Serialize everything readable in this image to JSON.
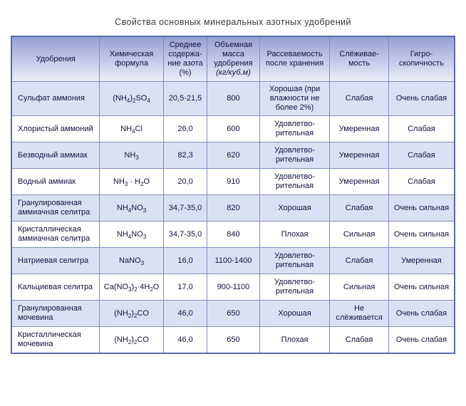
{
  "title": "Свойства основных минеральных азотных удобрений",
  "colors": {
    "header_gradient_top": "#96a0d3",
    "header_gradient_bottom": "#eceef9",
    "row_alt_background": "#dbe1f4",
    "row_background": "#ffffff",
    "border_inner": "#7f8dc5",
    "border_outer": "#5a69ae",
    "text": "#10103f",
    "title_text": "#3a3a3a"
  },
  "chart_data": {
    "type": "table",
    "title": "Свойства основных минеральных азотных удобрений",
    "headers": [
      {
        "label": "Удобрения"
      },
      {
        "label": "Химическая формула"
      },
      {
        "label": "Среднее содержа-ние азота (%)"
      },
      {
        "label": "Объемная масса удобрения",
        "unit": "(кг/куб.м)"
      },
      {
        "label": "Рассеваемость после хранения"
      },
      {
        "label": "Слёживае-мость"
      },
      {
        "label": "Гигро-скопичность"
      }
    ],
    "rows": [
      {
        "name": "Сульфат аммония",
        "formula": "(NH_4_)_2_SO_4_",
        "nitrogen": "20,5-21,5",
        "mass": "800",
        "scatter": "Хорошая (при влажности не более 2%)",
        "caking": "Слабая",
        "hygro": "Очень слабая"
      },
      {
        "name": "Хлористый аммоний",
        "formula": "NH_4_Cl",
        "nitrogen": "26,0",
        "mass": "600",
        "scatter": "Удовлетво-рительная",
        "caking": "Умеренная",
        "hygro": "Слабая"
      },
      {
        "name": "Безводный аммиак",
        "formula": "NH_3_",
        "nitrogen": "82,3",
        "mass": "620",
        "scatter": "Удовлетво-рительная",
        "caking": "Умеренная",
        "hygro": "Слабая"
      },
      {
        "name": "Водный аммиак",
        "formula": "NH_3_ · H_2_O",
        "nitrogen": "20,0",
        "mass": "910",
        "scatter": "Удовлетво-рительная",
        "caking": "Умеренная",
        "hygro": "Слабая"
      },
      {
        "name": "Гранулированная аммиачная селитра",
        "formula": "NH_4_NO_3_",
        "nitrogen": "34,7-35,0",
        "mass": "820",
        "scatter": "Хорошая",
        "caking": "Слабая",
        "hygro": "Очень сильная"
      },
      {
        "name": "Кристаллическая аммиачная селитра",
        "formula": "NH_4_NO_3_",
        "nitrogen": "34,7-35,0",
        "mass": "840",
        "scatter": "Плохая",
        "caking": "Сильная",
        "hygro": "Очень сильная"
      },
      {
        "name": "Натриевая селитра",
        "formula": "NaNO_3_",
        "nitrogen": "16,0",
        "mass": "1100-1400",
        "scatter": "Удовлетво-рительная",
        "caking": "Слабая",
        "hygro": "Умеренная"
      },
      {
        "name": "Кальциевая селитра",
        "formula": "Ca(NO_3_)_2_·4H_2_O",
        "nitrogen": "17,0",
        "mass": "900-1100",
        "scatter": "Удовлетво-рительная",
        "caking": "Сильная",
        "hygro": "Очень сильная"
      },
      {
        "name": "Гранулированная мочевина",
        "formula": "(NH_2_)_2_CO",
        "nitrogen": "46,0",
        "mass": "650",
        "scatter": "Хорошая",
        "caking": "Не слёживается",
        "hygro": "Очень слабая"
      },
      {
        "name": "Кристаллическая мочевина",
        "formula": "(NH_2_)_2_CO",
        "nitrogen": "46,0",
        "mass": "650",
        "scatter": "Плохая",
        "caking": "Слабая",
        "hygro": "Очень слабая"
      }
    ]
  }
}
